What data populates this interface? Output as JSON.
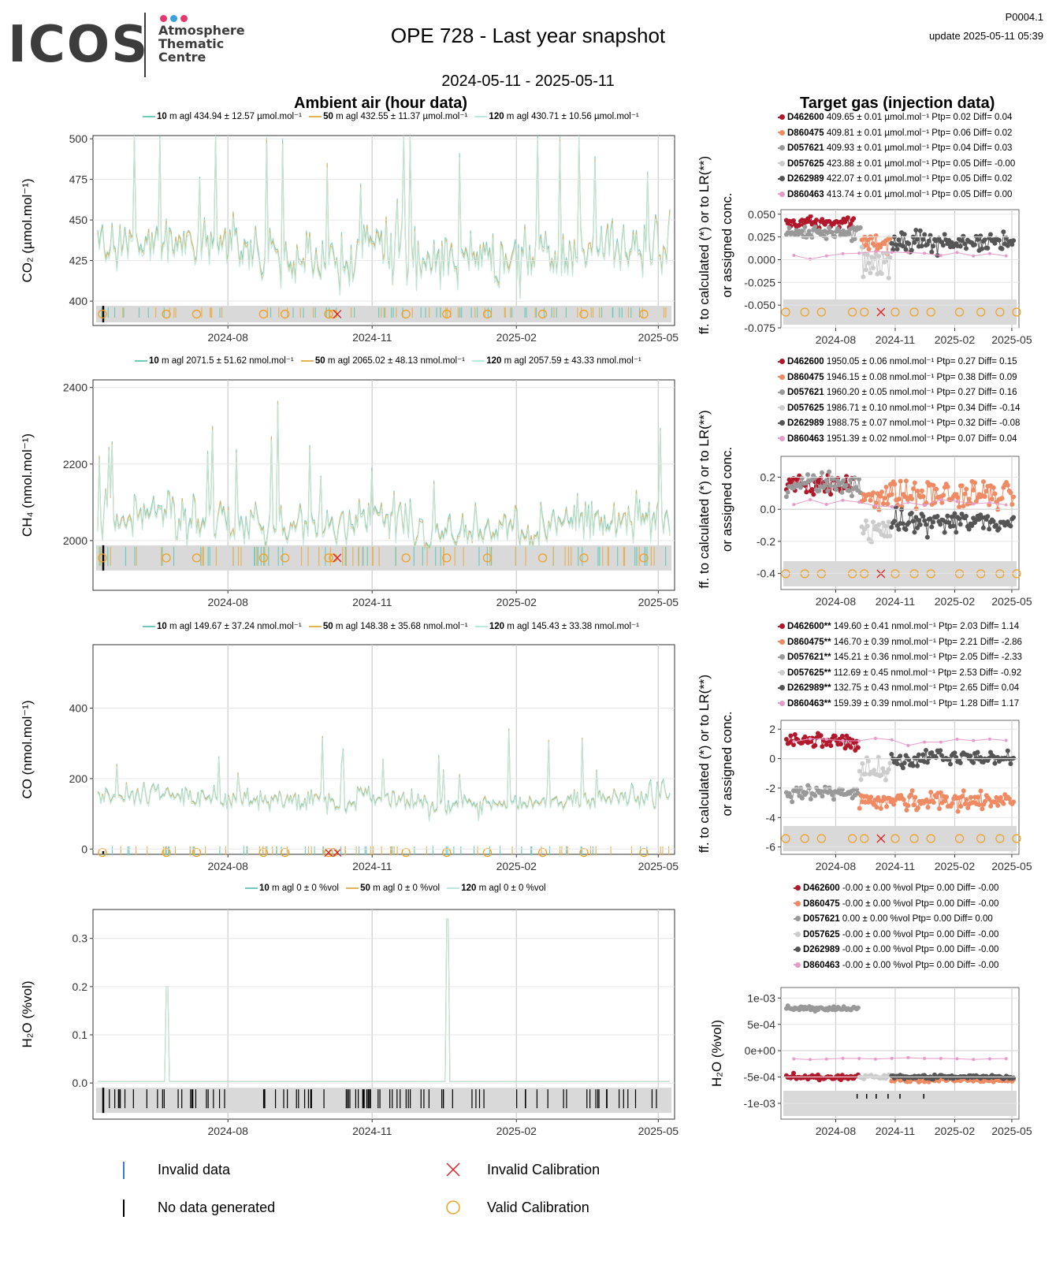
{
  "header": {
    "logo_word": "ICOS",
    "logo_line1": "Atmosphere",
    "logo_line2": "Thematic",
    "logo_line3": "Centre",
    "logo_colors": [
      "#e5366e",
      "#3aa0e0",
      "#e5366e"
    ],
    "title": "OPE 728 - Last year snapshot",
    "date_range": "2024-05-11 - 2025-05-11",
    "code": "P0004.1",
    "update": "update  2025-05-11 05:39"
  },
  "sections": {
    "ambient_title": "Ambient air (hour data)",
    "target_title": "Target gas (injection data)"
  },
  "colors": {
    "h10": "#6fcabd",
    "h50": "#e3b35c",
    "h120": "#bde8df",
    "D462600": "#b2182b",
    "D860475": "#ef8a62",
    "D057621": "#999999",
    "D057625": "#cccccc",
    "D262989": "#555555",
    "D860463": "#e69bc9",
    "valid_cal": "#f0a020",
    "invalid_cal": "#e02020",
    "invalid_data": "#3a7fd0",
    "no_data": "#000000"
  },
  "chart_data": [
    {
      "id": "co2_ambient",
      "type": "line",
      "ylabel": "CO₂ (µmol.mol⁻¹)",
      "ylim": [
        385,
        502
      ],
      "yticks": [
        "400",
        "425",
        "450",
        "475",
        "500"
      ],
      "ytick_values": [
        400,
        425,
        450,
        475,
        500
      ],
      "xticks": [
        "2024-08",
        "2024-11",
        "2025-02",
        "2025-05"
      ],
      "x_range": [
        "2024-05-11",
        "2025-05-11"
      ],
      "base": 430,
      "amp": 22,
      "spike": 1.0,
      "legend": [
        {
          "height": "10",
          "text": "m agl 434.94 ± 12.57 µmol.mol⁻¹"
        },
        {
          "height": "50",
          "text": "m agl 432.55 ± 11.37 µmol.mol⁻¹"
        },
        {
          "height": "120",
          "text": "m agl 430.71 ± 10.56 µmol.mol⁻¹"
        }
      ]
    },
    {
      "id": "ch4_ambient",
      "type": "line",
      "ylabel": "CH₄ (nmol.mol⁻¹)",
      "ylim": [
        1870,
        2420
      ],
      "yticks": [
        "2000",
        "2200",
        "2400"
      ],
      "ytick_values": [
        2000,
        2200,
        2400
      ],
      "xticks": [
        "2024-08",
        "2024-11",
        "2025-02",
        "2025-05"
      ],
      "x_range": [
        "2024-05-11",
        "2025-05-11"
      ],
      "base": 2045,
      "amp": 75,
      "spike": 1.0,
      "legend": [
        {
          "height": "10",
          "text": "m agl 2071.5 ± 51.62 nmol.mol⁻¹"
        },
        {
          "height": "50",
          "text": "m agl 2065.02 ± 48.13 nmol.mol⁻¹"
        },
        {
          "height": "120",
          "text": "m agl 2057.59 ± 43.33 nmol.mol⁻¹"
        }
      ]
    },
    {
      "id": "co_ambient",
      "type": "line",
      "ylabel": "CO (nmol.mol⁻¹)",
      "ylim": [
        -15,
        580
      ],
      "yticks": [
        "0",
        "200",
        "400"
      ],
      "ytick_values": [
        0,
        200,
        400
      ],
      "xticks": [
        "2024-08",
        "2024-11",
        "2025-02",
        "2025-05"
      ],
      "x_range": [
        "2024-05-11",
        "2025-05-11"
      ],
      "base": 140,
      "amp": 45,
      "spike": 1.0,
      "legend": [
        {
          "height": "10",
          "text": "m agl 149.67 ± 37.24 nmol.mol⁻¹"
        },
        {
          "height": "50",
          "text": "m agl 148.38 ± 35.68 nmol.mol⁻¹"
        },
        {
          "height": "120",
          "text": "m agl 145.43 ± 33.38 nmol.mol⁻¹"
        }
      ]
    },
    {
      "id": "h2o_ambient",
      "type": "line",
      "ylabel": "H₂O (%vol)",
      "ylim": [
        -0.075,
        0.36
      ],
      "yticks": [
        "0.0",
        "0.1",
        "0.2",
        "0.3"
      ],
      "ytick_values": [
        0,
        0.1,
        0.2,
        0.3
      ],
      "xticks": [
        "2024-08",
        "2024-11",
        "2025-02",
        "2025-05"
      ],
      "x_range": [
        "2024-05-11",
        "2025-05-11"
      ],
      "base": 0.003,
      "amp": 0.001,
      "spike": 0,
      "legend": [
        {
          "height": "10",
          "text": "m agl 0 ± 0 %vol"
        },
        {
          "height": "50",
          "text": "m agl 0 ± 0 %vol"
        },
        {
          "height": "120",
          "text": "m agl 0 ± 0 %vol"
        }
      ]
    },
    {
      "id": "co2_target",
      "type": "scatter",
      "ylabel": "Diff. to calculated (*) or to LR(**) or assigned conc.",
      "ylim": [
        -0.075,
        0.055
      ],
      "yticks": [
        "0.050",
        "0.025",
        "0.000",
        "-0.025",
        "-0.050",
        "-0.075"
      ],
      "ytick_values": [
        0.05,
        0.025,
        0,
        -0.025,
        -0.05,
        -0.075
      ],
      "xticks": [
        "2024-08",
        "2024-11",
        "2025-02",
        "2025-05"
      ],
      "legend": [
        {
          "tank": "D462600",
          "text": "409.65 ± 0.01 µmol.mol⁻¹ Ptp= 0.02 Diff= 0.04"
        },
        {
          "tank": "D860475",
          "text": "409.81 ± 0.01 µmol.mol⁻¹ Ptp= 0.06 Diff= 0.02"
        },
        {
          "tank": "D057621",
          "text": "409.93 ± 0.01 µmol.mol⁻¹ Ptp= 0.04 Diff= 0.03"
        },
        {
          "tank": "D057625",
          "text": "423.88 ± 0.01 µmol.mol⁻¹ Ptp= 0.05 Diff= -0.00"
        },
        {
          "tank": "D262989",
          "text": "422.07 ± 0.01 µmol.mol⁻¹ Ptp= 0.05 Diff= 0.02"
        },
        {
          "tank": "D860463",
          "text": "413.74 ± 0.01 µmol.mol⁻¹ Ptp= 0.05 Diff= 0.00"
        }
      ],
      "series": [
        {
          "tank": "D462600",
          "x0": 0.0,
          "x1": 0.3,
          "y": 0.04,
          "sd": 0.005
        },
        {
          "tank": "D057621",
          "x0": 0.0,
          "x1": 0.33,
          "y": 0.03,
          "sd": 0.005
        },
        {
          "tank": "D860475",
          "x0": 0.33,
          "x1": 0.46,
          "y": 0.02,
          "sd": 0.008
        },
        {
          "tank": "D057625",
          "x0": 0.33,
          "x1": 0.46,
          "y": -0.005,
          "sd": 0.012
        },
        {
          "tank": "D262989",
          "x0": 0.46,
          "x1": 1.0,
          "y": 0.02,
          "sd": 0.008
        },
        {
          "tank": "D860463",
          "x0": 0.0,
          "x1": 1.0,
          "y": 0.005,
          "sd": 0.003,
          "sparse": true
        }
      ]
    },
    {
      "id": "ch4_target",
      "type": "scatter",
      "ylabel": "Diff. to calculated (*) or to LR(**) or assigned conc.",
      "ylim": [
        -0.5,
        0.33
      ],
      "yticks": [
        "0.2",
        "0.0",
        "-0.2",
        "-0.4"
      ],
      "ytick_values": [
        0.2,
        0,
        -0.2,
        -0.4
      ],
      "xticks": [
        "2024-08",
        "2024-11",
        "2025-02",
        "2025-05"
      ],
      "legend": [
        {
          "tank": "D462600",
          "text": "1950.05 ± 0.06 nmol.mol⁻¹ Ptp= 0.27 Diff= 0.15"
        },
        {
          "tank": "D860475",
          "text": "1946.15 ± 0.08 nmol.mol⁻¹ Ptp= 0.38 Diff= 0.09"
        },
        {
          "tank": "D057621",
          "text": "1960.20 ± 0.05 nmol.mol⁻¹ Ptp= 0.27 Diff= 0.16"
        },
        {
          "tank": "D057625",
          "text": "1986.71 ± 0.10 nmol.mol⁻¹ Ptp= 0.34 Diff= -0.14"
        },
        {
          "tank": "D262989",
          "text": "1988.75 ± 0.07 nmol.mol⁻¹ Ptp= 0.32 Diff= -0.08"
        },
        {
          "tank": "D860463",
          "text": "1951.39 ± 0.02 nmol.mol⁻¹ Ptp= 0.07 Diff= 0.04"
        }
      ],
      "series": [
        {
          "tank": "D462600",
          "x0": 0.0,
          "x1": 0.3,
          "y": 0.15,
          "sd": 0.05
        },
        {
          "tank": "D057621",
          "x0": 0.0,
          "x1": 0.33,
          "y": 0.16,
          "sd": 0.05
        },
        {
          "tank": "D057625",
          "x0": 0.33,
          "x1": 0.46,
          "y": -0.14,
          "sd": 0.06
        },
        {
          "tank": "D860475",
          "x0": 0.33,
          "x1": 1.0,
          "y": 0.09,
          "sd": 0.06
        },
        {
          "tank": "D262989",
          "x0": 0.46,
          "x1": 1.0,
          "y": -0.08,
          "sd": 0.05
        },
        {
          "tank": "D860463",
          "x0": 0.0,
          "x1": 1.0,
          "y": 0.04,
          "sd": 0.02,
          "sparse": true
        }
      ]
    },
    {
      "id": "co_target",
      "type": "scatter",
      "ylabel": "Diff. to calculated (*) or to LR(**) or assigned conc.",
      "ylim": [
        -6.5,
        2.6
      ],
      "yticks": [
        "2",
        "0",
        "-2",
        "-4",
        "-6"
      ],
      "ytick_values": [
        2,
        0,
        -2,
        -4,
        -6
      ],
      "xticks": [
        "2024-08",
        "2024-11",
        "2025-02",
        "2025-05"
      ],
      "legend": [
        {
          "tank": "D462600**",
          "text": "149.60 ± 0.41 nmol.mol⁻¹ Ptp= 2.03 Diff= 1.14"
        },
        {
          "tank": "D860475**",
          "text": "146.70 ± 0.39 nmol.mol⁻¹ Ptp= 2.21 Diff= -2.86"
        },
        {
          "tank": "D057621**",
          "text": "145.21 ± 0.36 nmol.mol⁻¹ Ptp= 2.05 Diff= -2.33"
        },
        {
          "tank": "D057625**",
          "text": "112.69 ± 0.45 nmol.mol⁻¹ Ptp= 2.53 Diff= -0.92"
        },
        {
          "tank": "D262989**",
          "text": "132.75 ± 0.43 nmol.mol⁻¹ Ptp= 2.65 Diff= 0.04"
        },
        {
          "tank": "D860463**",
          "text": "159.39 ± 0.39 nmol.mol⁻¹ Ptp= 1.28 Diff= 1.17"
        }
      ],
      "series": [
        {
          "tank": "D462600",
          "x0": 0.0,
          "x1": 0.32,
          "y": 1.14,
          "sd": 0.4
        },
        {
          "tank": "D057621",
          "x0": 0.0,
          "x1": 0.32,
          "y": -2.33,
          "sd": 0.4
        },
        {
          "tank": "D057625",
          "x0": 0.32,
          "x1": 0.46,
          "y": -0.92,
          "sd": 0.6
        },
        {
          "tank": "D860475",
          "x0": 0.32,
          "x1": 1.0,
          "y": -2.86,
          "sd": 0.4
        },
        {
          "tank": "D262989",
          "x0": 0.46,
          "x1": 1.0,
          "y": 0.04,
          "sd": 0.4
        },
        {
          "tank": "D860463",
          "x0": 0.0,
          "x1": 1.0,
          "y": 1.17,
          "sd": 0.2,
          "sparse": true
        }
      ]
    },
    {
      "id": "h2o_target",
      "type": "scatter",
      "ylabel": "H₂O (%vol)",
      "ylim": [
        -0.0013,
        0.0012
      ],
      "yticks": [
        "1e-03",
        "5e-04",
        "0e+00",
        "-5e-04",
        "-1e-03"
      ],
      "ytick_values": [
        0.001,
        0.0005,
        0,
        -0.0005,
        -0.001
      ],
      "xticks": [
        "2024-08",
        "2024-11",
        "2025-02",
        "2025-05"
      ],
      "legend": [
        {
          "tank": "D462600",
          "text": "-0.00 ± 0.00 %vol Ptp= 0.00 Diff= -0.00"
        },
        {
          "tank": "D860475",
          "text": "-0.00 ± 0.00 %vol Ptp= 0.00 Diff= -0.00"
        },
        {
          "tank": "D057621",
          "text": "0.00 ± 0.00 %vol Ptp= 0.00 Diff= 0.00"
        },
        {
          "tank": "D057625",
          "text": "-0.00 ± 0.00 %vol Ptp= 0.00 Diff= -0.00"
        },
        {
          "tank": "D262989",
          "text": "-0.00 ± 0.00 %vol Ptp= 0.00 Diff= -0.00"
        },
        {
          "tank": "D860463",
          "text": "-0.00 ± 0.00 %vol Ptp= 0.00 Diff= -0.00"
        }
      ],
      "series": [
        {
          "tank": "D057621",
          "x0": 0.0,
          "x1": 0.32,
          "y": 0.0008,
          "sd": 3e-05
        },
        {
          "tank": "D462600",
          "x0": 0.0,
          "x1": 0.32,
          "y": -0.0005,
          "sd": 4e-05
        },
        {
          "tank": "D057625",
          "x0": 0.32,
          "x1": 0.46,
          "y": -0.0005,
          "sd": 3e-05
        },
        {
          "tank": "D860475",
          "x0": 0.46,
          "x1": 1.0,
          "y": -0.00055,
          "sd": 3e-05
        },
        {
          "tank": "D262989",
          "x0": 0.46,
          "x1": 1.0,
          "y": -0.0005,
          "sd": 3e-05
        },
        {
          "tank": "D860463",
          "x0": 0.0,
          "x1": 1.0,
          "y": -0.00015,
          "sd": 2e-05,
          "sparse": true
        }
      ]
    }
  ],
  "bottom_legend": {
    "invalid_data": "Invalid data",
    "no_data": "No data generated",
    "invalid_cal": "Invalid Calibration",
    "valid_cal": "Valid Calibration"
  }
}
